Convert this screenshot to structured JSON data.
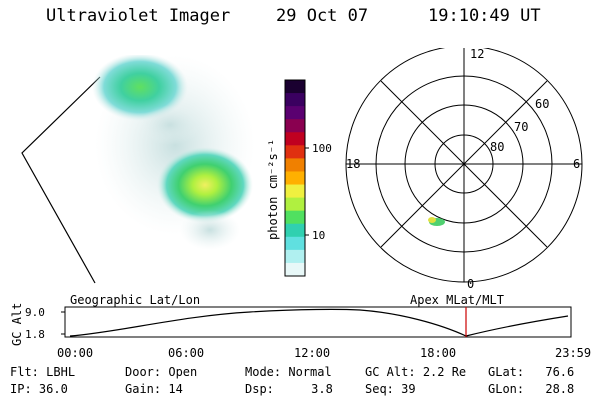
{
  "header": {
    "title": "Ultraviolet Imager",
    "date": "29 Oct 07",
    "time": "19:10:49 UT"
  },
  "colorbar": {
    "label": "photon cm⁻²s⁻¹",
    "ticks": [
      "100",
      "10"
    ],
    "colors": [
      "#1a0030",
      "#3a0060",
      "#5a0070",
      "#8a0050",
      "#c00020",
      "#e03010",
      "#f08000",
      "#ffb000",
      "#f0f040",
      "#b0f040",
      "#50e060",
      "#30d0b0",
      "#60e0e0",
      "#b0f0f0",
      "#e8f8f8"
    ]
  },
  "polar": {
    "mlt_labels": {
      "top": "12",
      "left": "18",
      "right": "6",
      "bottom": "0"
    },
    "lat_labels": [
      "60",
      "70",
      "80"
    ]
  },
  "timeline": {
    "left_label": "Geographic Lat/Lon",
    "right_label": "Apex MLat/MLT",
    "y_axis_label": "GC Alt",
    "y_ticks": [
      "9.0",
      "1.8"
    ],
    "x_ticks": [
      "00:00",
      "06:00",
      "12:00",
      "18:00",
      "23:59"
    ],
    "marker_time": "19:10:49",
    "marker_color": "#cc0000"
  },
  "status": {
    "filter_label": "Flt:",
    "filter": "LBHL",
    "door_label": "Door:",
    "door": "Open",
    "mode_label": "Mode:",
    "mode": "Normal",
    "gcalt_label": "GC Alt:",
    "gcalt": "2.2 Re",
    "glat_label": "GLat:",
    "glat": "76.6",
    "ip_label": "IP:",
    "ip": "36.0",
    "gain_label": "Gain:",
    "gain": "14",
    "dsp_label": "Dsp:",
    "dsp": "3.8",
    "seq_label": "Seq:",
    "seq": "39",
    "glon_label": "GLon:",
    "glon": "28.8"
  }
}
